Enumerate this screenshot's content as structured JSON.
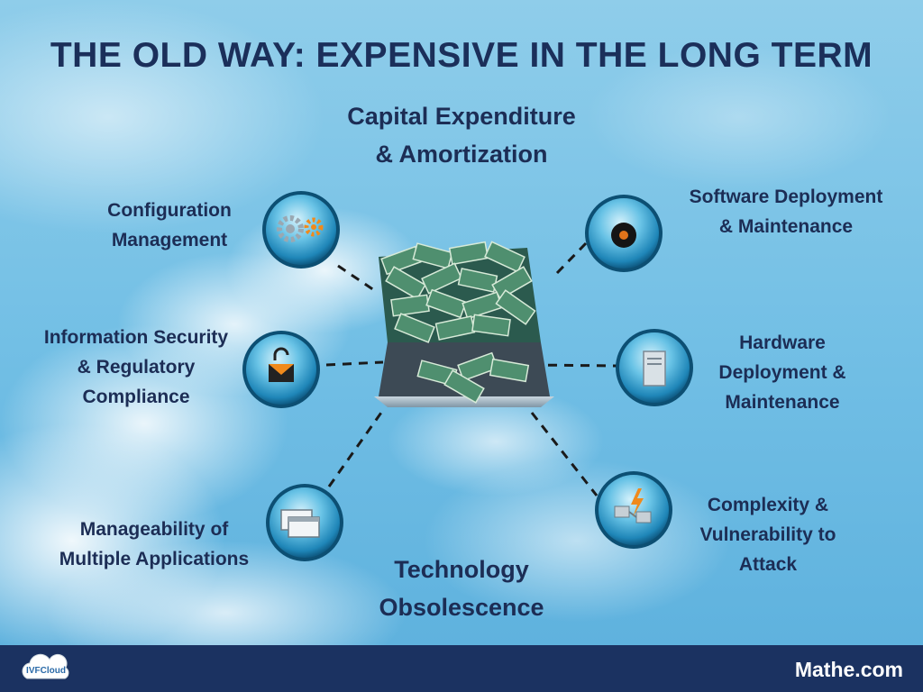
{
  "title": "THE OLD WAY: EXPENSIVE IN THE LONG TERM",
  "top_label": {
    "line1": "Capital Expenditure",
    "line2": "& Amortization"
  },
  "bottom_label": {
    "line1": "Technology",
    "line2": "Obsolescence"
  },
  "nodes": [
    {
      "line1": "Configuration",
      "line2": "Management",
      "icon": "gears-icon"
    },
    {
      "line1": "Information Security",
      "line2": "& Regulatory",
      "line3": "Compliance",
      "icon": "lock-envelope-icon"
    },
    {
      "line1": "Manageability of",
      "line2": "Multiple Applications",
      "icon": "windows-icon"
    },
    {
      "line1": "Software Deployment",
      "line2": "& Maintenance",
      "icon": "disc-icon"
    },
    {
      "line1": "Hardware",
      "line2": "Deployment &",
      "line3": "Maintenance",
      "icon": "server-icon"
    },
    {
      "line1": "Complexity &",
      "line2": "Vulnerability to",
      "line3": "Attack",
      "icon": "network-alert-icon"
    }
  ],
  "footer": {
    "brand": "Mathe.com",
    "logo_text": "IVFCloud"
  },
  "colors": {
    "title": "#1b2f5a",
    "footer": "#1b3261",
    "sky": "#7cc3e6"
  }
}
